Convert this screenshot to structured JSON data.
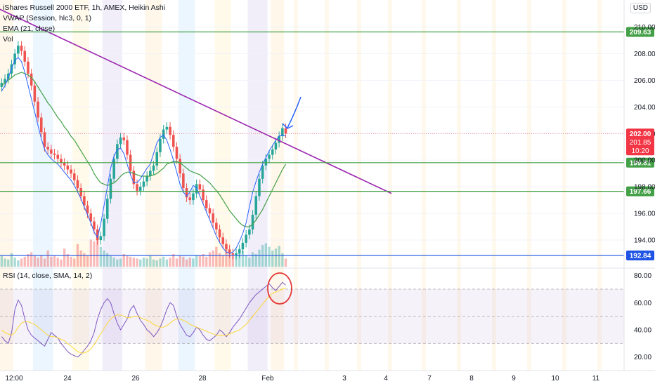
{
  "chart_data": {
    "type": "candlestick",
    "title": "iShares Russell 2000 ETF, 1h, AMEX, Heikin Ashi",
    "currency": "USD",
    "indicators": [
      "VWAP (Session, hlc3, 0, 1)",
      "EMA (21, close)",
      "Vol"
    ],
    "rsi_label": "RSI (14, close, SMA, 14, 2)",
    "x_tick_labels": [
      "12:00",
      "24",
      "26",
      "28",
      "Feb",
      "3",
      "4",
      "7",
      "8",
      "9",
      "10",
      "11"
    ],
    "y_range": [
      192.0,
      211.5
    ],
    "y_ticks": [
      194,
      196,
      198,
      200,
      202,
      204,
      206,
      208,
      210
    ],
    "rsi_range": [
      10,
      85
    ],
    "rsi_ticks": [
      20,
      40,
      60,
      80
    ],
    "rsi_bands": [
      30,
      50,
      70
    ],
    "horizontal_levels": [
      {
        "value": 209.63,
        "label": "209.63",
        "color": "#43a047"
      },
      {
        "value": 199.81,
        "label": "199.81",
        "color": "#43a047"
      },
      {
        "value": 197.66,
        "label": "197.66",
        "color": "#43a047"
      },
      {
        "value": 192.84,
        "label": "192.84",
        "color": "#1e53e5"
      }
    ],
    "last_price": {
      "label": "202.00",
      "value": 202.0,
      "secondary": "201.85",
      "countdown": "10:20",
      "color": "#f23645"
    },
    "trendline": {
      "start": {
        "bar": -8,
        "value": 212.2
      },
      "end": {
        "bar": 118,
        "value": 197.5
      },
      "color": "#9c27b0"
    },
    "candles_close": [
      205.8,
      206.1,
      206.5,
      207.2,
      208.0,
      208.6,
      208.2,
      207.4,
      206.5,
      205.6,
      204.4,
      203.2,
      202.1,
      201.0,
      200.8,
      200.5,
      200.4,
      200.1,
      199.8,
      199.6,
      199.3,
      199.0,
      198.5,
      197.9,
      197.3,
      196.6,
      196.0,
      195.4,
      194.8,
      194.0,
      194.3,
      195.6,
      197.1,
      198.6,
      200.1,
      201.2,
      201.7,
      201.5,
      200.4,
      199.2,
      198.2,
      197.7,
      198.0,
      198.4,
      198.8,
      199.2,
      199.6,
      200.6,
      201.6,
      202.3,
      202.5,
      201.9,
      201.0,
      200.1,
      199.0,
      197.9,
      197.2,
      197.0,
      197.5,
      198.2,
      197.8,
      197.0,
      196.4,
      196.0,
      195.3,
      194.8,
      194.2,
      193.7,
      193.3,
      193.0,
      192.9,
      193.0,
      193.3,
      193.8,
      194.4,
      194.8,
      195.9,
      197.3,
      198.6,
      199.6,
      200.1,
      200.4,
      200.8,
      201.3,
      201.8,
      202.4,
      202.0
    ],
    "ema_values": [
      205.6,
      205.8,
      206.0,
      206.2,
      206.4,
      206.5,
      206.6,
      206.5,
      206.4,
      206.2,
      205.9,
      205.5,
      205.1,
      204.7,
      204.3,
      204.0,
      203.6,
      203.2,
      202.9,
      202.5,
      202.2,
      201.8,
      201.5,
      201.1,
      200.7,
      200.3,
      199.9,
      199.5,
      199.0,
      198.6,
      198.3,
      198.2,
      198.1,
      198.2,
      198.3,
      198.5,
      198.8,
      199.0,
      199.1,
      199.1,
      199.0,
      198.9,
      198.8,
      198.8,
      198.8,
      198.8,
      198.9,
      199.0,
      199.2,
      199.4,
      199.7,
      199.8,
      199.9,
      199.9,
      199.8,
      199.6,
      199.4,
      199.2,
      199.1,
      199.0,
      198.9,
      198.7,
      198.5,
      198.3,
      198.0,
      197.7,
      197.4,
      197.0,
      196.6,
      196.2,
      195.9,
      195.6,
      195.3,
      195.1,
      195.0,
      195.0,
      195.2,
      195.5,
      195.9,
      196.3,
      196.8,
      197.3,
      197.8,
      198.3,
      198.8,
      199.3,
      199.7
    ],
    "vwap_values": [
      205.2,
      205.6,
      206.2,
      206.9,
      207.5,
      207.7,
      207.4,
      206.6,
      205.6,
      204.6,
      203.6,
      202.6,
      201.6,
      200.8,
      200.4,
      200.1,
      199.9,
      199.7,
      199.4,
      199.1,
      198.8,
      198.5,
      198.1,
      197.6,
      197.1,
      196.5,
      195.9,
      195.3,
      194.6,
      194.2,
      195.2,
      196.6,
      198.0,
      199.4,
      200.3,
      200.8,
      200.9,
      200.5,
      199.7,
      198.9,
      198.3,
      198.3,
      198.6,
      199.0,
      199.4,
      199.7,
      200.5,
      201.3,
      201.7,
      201.9,
      201.5,
      200.8,
      200.0,
      199.1,
      198.2,
      197.6,
      197.3,
      197.6,
      198.1,
      197.9,
      197.3,
      196.7,
      196.1,
      195.5,
      194.9,
      194.3,
      193.8,
      193.4,
      193.1,
      193.0,
      193.1,
      193.4,
      193.9,
      194.5,
      195.3,
      196.5,
      197.6,
      198.4,
      199.1,
      199.7,
      200.2,
      200.7,
      201.1,
      201.5,
      201.8,
      201.9,
      201.8
    ],
    "volume": [
      12,
      9,
      8,
      15,
      10,
      7,
      9,
      11,
      14,
      16,
      12,
      10,
      13,
      9,
      18,
      11,
      12,
      10,
      8,
      20,
      14,
      11,
      9,
      25,
      18,
      15,
      12,
      30,
      28,
      35,
      22,
      18,
      15,
      12,
      10,
      8,
      9,
      14,
      12,
      11,
      10,
      9,
      8,
      10,
      9,
      12,
      8,
      7,
      9,
      11,
      8,
      10,
      14,
      9,
      12,
      11,
      8,
      10,
      9,
      13,
      12,
      14,
      11,
      16,
      18,
      22,
      15,
      13,
      19,
      17,
      12,
      15,
      20,
      18,
      13,
      10,
      16,
      14,
      19,
      24,
      26,
      22,
      18,
      20,
      23,
      15,
      9
    ],
    "rsi_values": [
      35,
      32,
      30,
      38,
      55,
      62,
      58,
      48,
      40,
      36,
      34,
      32,
      30,
      28,
      33,
      38,
      36,
      34,
      30,
      27,
      24,
      22,
      21,
      20,
      22,
      25,
      28,
      32,
      38,
      48,
      55,
      60,
      63,
      60,
      52,
      45,
      40,
      44,
      48,
      55,
      58,
      52,
      47,
      44,
      40,
      38,
      35,
      38,
      42,
      48,
      55,
      60,
      58,
      50,
      44,
      40,
      36,
      35,
      38,
      42,
      40,
      36,
      33,
      32,
      34,
      36,
      40,
      38,
      35,
      38,
      42,
      45,
      48,
      52,
      56,
      60,
      63,
      66,
      68,
      70,
      72,
      74,
      71,
      69,
      72,
      75,
      73
    ],
    "rsi_ma_values": [
      40,
      38,
      37,
      36,
      38,
      42,
      45,
      46,
      46,
      45,
      44,
      42,
      40,
      38,
      36,
      35,
      35,
      34,
      33,
      32,
      30,
      28,
      26,
      24,
      23,
      23,
      24,
      26,
      29,
      33,
      37,
      41,
      45,
      48,
      50,
      51,
      51,
      50,
      49,
      49,
      50,
      50,
      49,
      48,
      47,
      46,
      44,
      43,
      42,
      42,
      43,
      45,
      47,
      48,
      48,
      47,
      46,
      44,
      43,
      42,
      41,
      40,
      39,
      38,
      37,
      36,
      36,
      36,
      36,
      37,
      38,
      39,
      40,
      42,
      44,
      47,
      50,
      53,
      56,
      59,
      62,
      65,
      67,
      68,
      69,
      70,
      71
    ],
    "annotations": [
      {
        "type": "arrow",
        "color": "#2962ff"
      },
      {
        "type": "ellipse",
        "color": "#e53935"
      }
    ]
  }
}
